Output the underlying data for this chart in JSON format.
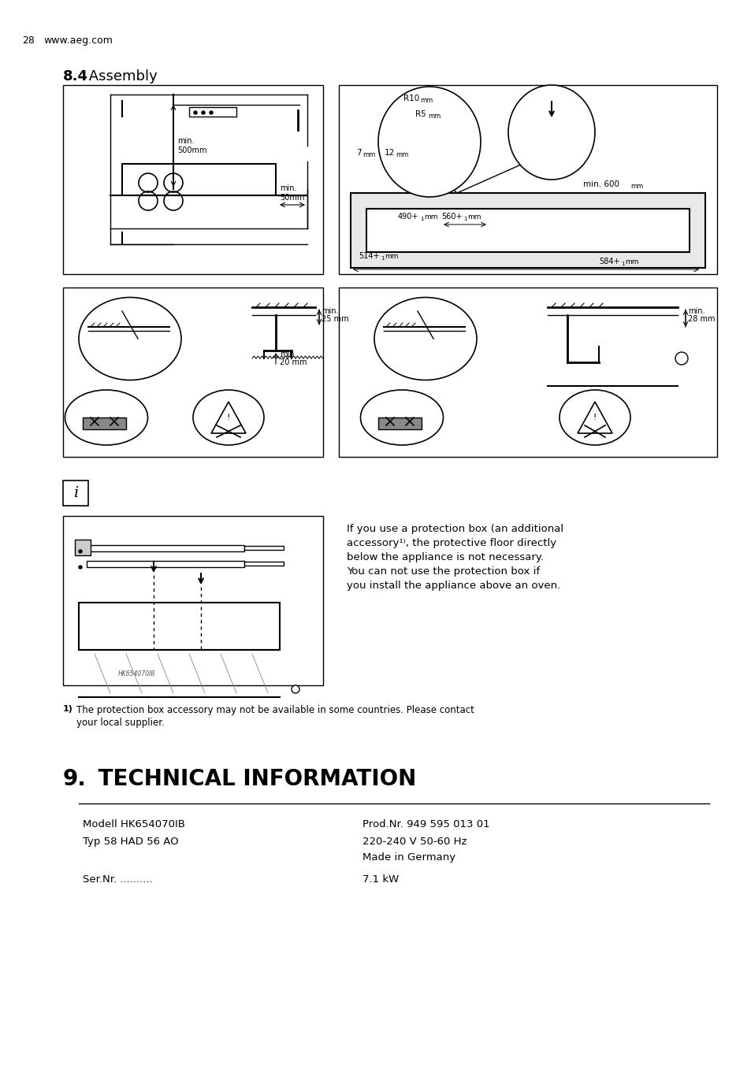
{
  "page_number": "28",
  "website": "www.aeg.com",
  "section_bold": "8.4",
  "section_title": " Assembly",
  "tech_section_number": "9.",
  "tech_section_title": " TECHNICAL INFORMATION",
  "table_data": [
    [
      "Modell HK654070IB",
      "Prod.Nr. 949 595 013 01"
    ],
    [
      "Typ 58 HAD 56 AO",
      "220-240 V 50-60 Hz"
    ],
    [
      "",
      "Made in Germany"
    ],
    [
      "Ser.Nr. ..........",
      "7.1 kW"
    ]
  ],
  "footnote_superscript": "1)",
  "footnote_text": " The protection box accessory may not be available in some countries. Please contact\n   your local supplier.",
  "info_box_text": "If you use a protection box (an additional\naccessory¹⁾, the protective floor directly\nbelow the appliance is not necessary.\nYou can not use the protection box if\nyou install the appliance above an oven.",
  "bg_color": "#ffffff",
  "text_color": "#000000",
  "line_color": "#000000"
}
